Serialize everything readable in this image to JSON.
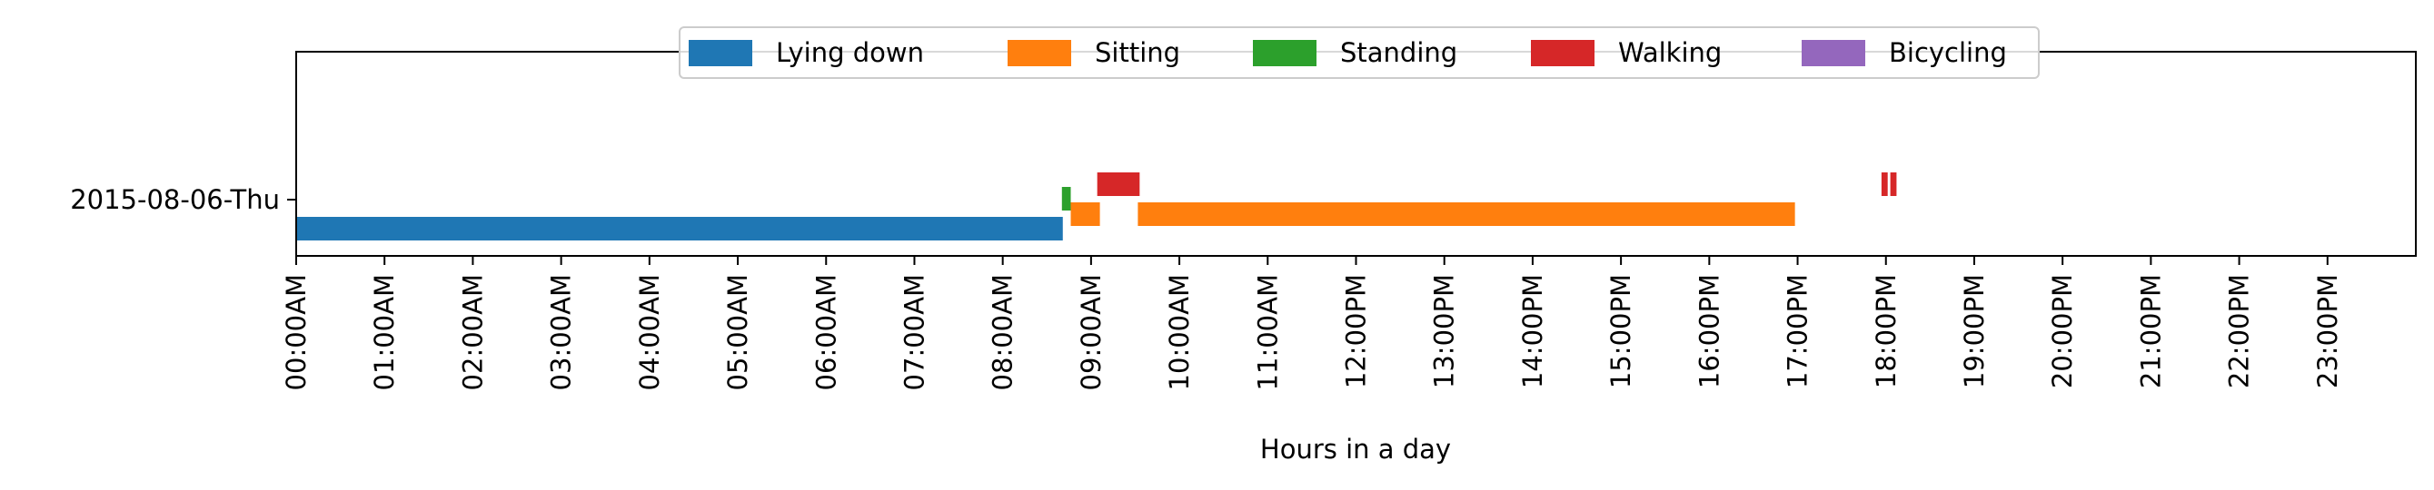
{
  "chart_data": {
    "type": "bar",
    "orientation": "horizontal",
    "xlabel": "Hours in a day",
    "ylabel": "",
    "xlim": [
      0,
      24
    ],
    "grid": false,
    "legend_position": "top-center",
    "y_categories": [
      "2015-08-06-Thu"
    ],
    "x_tick_values": [
      0,
      1,
      2,
      3,
      4,
      5,
      6,
      7,
      8,
      9,
      10,
      11,
      12,
      13,
      14,
      15,
      16,
      17,
      18,
      19,
      20,
      21,
      22,
      23
    ],
    "x_tick_labels": [
      "00:00AM",
      "01:00AM",
      "02:00AM",
      "03:00AM",
      "04:00AM",
      "05:00AM",
      "06:00AM",
      "07:00AM",
      "08:00AM",
      "09:00AM",
      "10:00AM",
      "11:00AM",
      "12:00PM",
      "13:00PM",
      "14:00PM",
      "15:00PM",
      "16:00PM",
      "17:00PM",
      "18:00PM",
      "19:00PM",
      "20:00PM",
      "21:00PM",
      "22:00PM",
      "23:00PM"
    ],
    "series": [
      {
        "name": "Lying down",
        "color": "#1f77b4",
        "intervals": [
          [
            0.0,
            8.68
          ]
        ]
      },
      {
        "name": "Sitting",
        "color": "#ff7f0e",
        "intervals": [
          [
            8.77,
            9.1
          ],
          [
            9.53,
            16.97
          ]
        ]
      },
      {
        "name": "Standing",
        "color": "#2ca02c",
        "intervals": [
          [
            8.67,
            8.77
          ]
        ]
      },
      {
        "name": "Walking",
        "color": "#d62728",
        "intervals": [
          [
            9.07,
            9.55
          ],
          [
            17.95,
            18.02
          ],
          [
            18.05,
            18.12
          ]
        ]
      },
      {
        "name": "Bicycling",
        "color": "#9467bd",
        "intervals": []
      }
    ]
  }
}
